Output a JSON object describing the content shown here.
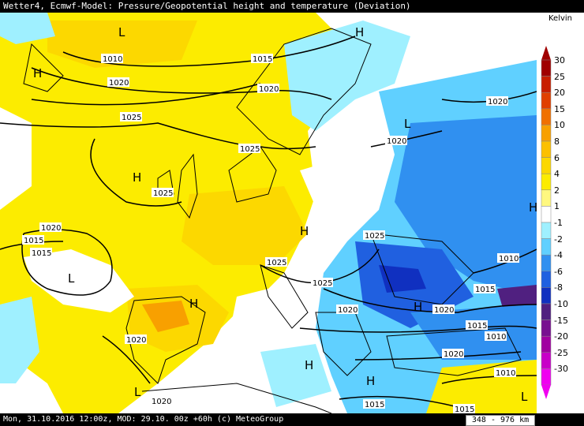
{
  "header": {
    "title": "Wetter4, Ecmwf-Model: Pressure/Geopotential height and temperature (Deviation)"
  },
  "footer": {
    "info": "Mon, 31.10.2016 12:00z, MOD: 29.10. 00z +60h (c) MeteoGroup",
    "scale": "348 - 976 km"
  },
  "legend": {
    "title": "Kelvin",
    "ticks": [
      "30",
      "25",
      "20",
      "15",
      "10",
      "8",
      "6",
      "4",
      "2",
      "1",
      "-1",
      "-2",
      "-4",
      "-6",
      "-8",
      "-10",
      "-15",
      "-20",
      "-25",
      "-30"
    ],
    "colors": [
      "#a00000",
      "#c81e00",
      "#e04000",
      "#f07000",
      "#f8a000",
      "#fcc000",
      "#fcd800",
      "#fcec00",
      "#fff880",
      "#ffffff",
      "#9ff0ff",
      "#60d0ff",
      "#3090f0",
      "#2060e0",
      "#1030c0",
      "#502080",
      "#781090",
      "#a000a0",
      "#c800c8",
      "#f000f0"
    ],
    "color_names": [
      "dark-red",
      "red",
      "red-orange",
      "orange",
      "amber",
      "gold",
      "yellow-gold",
      "yellow",
      "pale-yellow",
      "white",
      "pale-cyan",
      "cyan",
      "blue",
      "mid-blue",
      "dark-blue",
      "indigo",
      "purple",
      "violet",
      "magenta",
      "pink-magenta"
    ]
  },
  "isobars": {
    "labels": [
      "1010",
      "1015",
      "1020",
      "1020",
      "1025",
      "1025",
      "1015",
      "1020",
      "1025",
      "1025",
      "1025",
      "1025",
      "1020",
      "1020",
      "1020",
      "1020",
      "1015",
      "1015",
      "1010",
      "1010",
      "1015",
      "1020",
      "1010",
      "1015",
      "1015",
      "1020",
      "1020"
    ]
  },
  "pressure_centers": [
    "L",
    "H",
    "H",
    "H",
    "L",
    "H",
    "H",
    "L",
    "H",
    "H",
    "H",
    "L",
    "H",
    "L"
  ]
}
